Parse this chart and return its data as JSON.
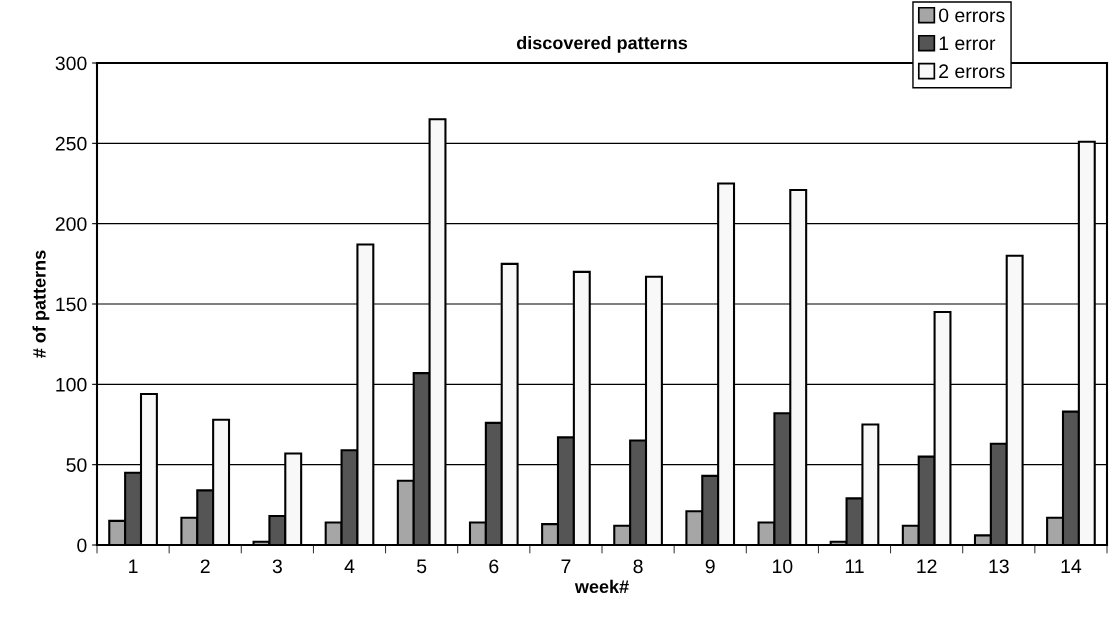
{
  "chart_data": {
    "type": "bar",
    "title": "discovered patterns",
    "xlabel": "week#",
    "ylabel": "# of patterns",
    "categories": [
      "1",
      "2",
      "3",
      "4",
      "5",
      "6",
      "7",
      "8",
      "9",
      "10",
      "11",
      "12",
      "13",
      "14"
    ],
    "series": [
      {
        "name": "0 errors",
        "color": "#a6a6a6",
        "values": [
          15,
          17,
          2,
          14,
          40,
          14,
          13,
          12,
          21,
          14,
          2,
          12,
          6,
          17
        ]
      },
      {
        "name": "1 error",
        "color": "#555555",
        "values": [
          45,
          34,
          18,
          59,
          107,
          76,
          67,
          65,
          43,
          82,
          29,
          55,
          63,
          83
        ]
      },
      {
        "name": "2 errors",
        "color": "#f8f8f8",
        "values": [
          94,
          78,
          57,
          187,
          265,
          175,
          170,
          167,
          225,
          221,
          75,
          145,
          180,
          251
        ]
      }
    ],
    "ylim": [
      0,
      300
    ],
    "yticks": [
      0,
      50,
      100,
      150,
      200,
      250,
      300
    ],
    "grid": "y",
    "legend": "top right"
  }
}
